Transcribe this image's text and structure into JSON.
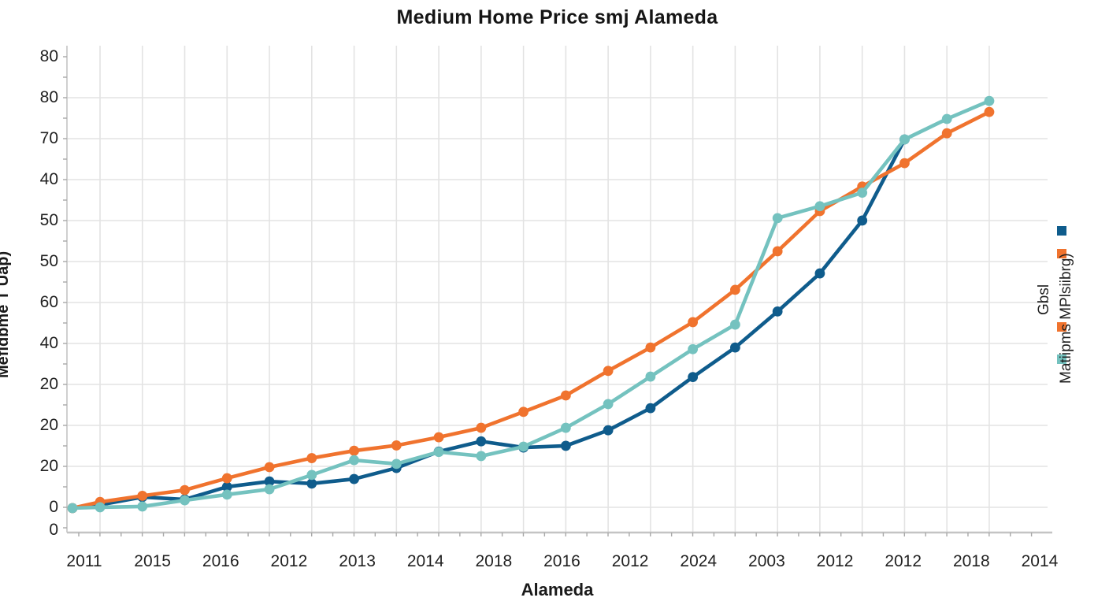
{
  "chart_data": {
    "type": "line",
    "title": "Medium Home Price smj Alameda",
    "xlabel": "Alameda",
    "ylabel": "Mefidbme T Uap)",
    "x_tick_labels": [
      "2011",
      "2015",
      "2016",
      "2012",
      "2013",
      "2014",
      "2018",
      "2016",
      "2012",
      "2024",
      "2003",
      "2012",
      "2012",
      "2018",
      "2014"
    ],
    "y_tick_labels": [
      "80",
      "80",
      "70",
      "40",
      "50",
      "50",
      "60",
      "40",
      "20",
      "20",
      "20",
      "0",
      "0"
    ],
    "grid": true,
    "legend_position": "right, whole legend rotated 90 degrees",
    "axis_note": "tick labels in source image are garbled/non-monotonic; series values below are in chart units where one horizontal gridline step = 10 units, baseline gridline = 0",
    "ylim": [
      0,
      116
    ],
    "x_point_count": 23,
    "series": [
      {
        "name": "blue",
        "color": "#0f5c8c",
        "values": [
          0,
          0.8,
          2.7,
          2.1,
          5.2,
          6.5,
          6.0,
          7.1,
          9.8,
          13.8,
          16.3,
          14.8,
          15.2,
          19.0,
          24.4,
          32.0,
          39.2,
          48.0,
          57.3,
          70.2,
          90.0,
          null,
          null
        ]
      },
      {
        "name": "orange",
        "color": "#f0732e",
        "values": [
          0,
          1.5,
          3.0,
          4.4,
          7.3,
          10.0,
          12.2,
          14.0,
          15.3,
          17.3,
          19.6,
          23.5,
          27.5,
          33.5,
          39.2,
          45.4,
          53.3,
          62.7,
          72.5,
          78.5,
          84.2,
          91.5,
          96.7
        ]
      },
      {
        "name": "teal",
        "color": "#74c2bf",
        "values": [
          0,
          0.2,
          0.4,
          1.9,
          3.3,
          4.6,
          8.1,
          11.7,
          10.8,
          13.7,
          12.7,
          15.0,
          19.6,
          25.4,
          32.1,
          38.8,
          44.8,
          70.8,
          73.7,
          77.0,
          90.0,
          95.0,
          99.4
        ]
      }
    ],
    "legend": {
      "entries": [
        {
          "label": "Gbsl",
          "swatches": [
            "blue",
            "orange"
          ]
        },
        {
          "label": "Matiipms MPlsiibrg)",
          "swatches": [
            "orange",
            "teal"
          ]
        }
      ]
    },
    "colors": {
      "blue": "#0f5c8c",
      "orange": "#f0732e",
      "teal": "#74c2bf",
      "gridline": "#e3e3e3",
      "axis_line": "#c4c4c4",
      "minor_tick": "#a8a8a8",
      "text": "#222222"
    }
  }
}
